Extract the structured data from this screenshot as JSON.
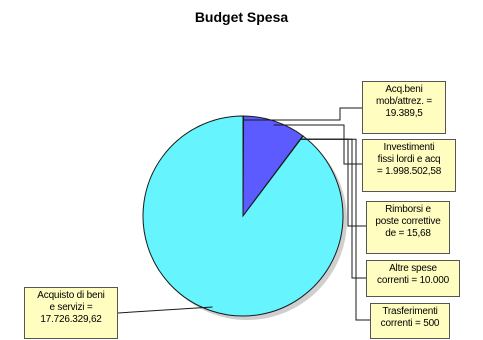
{
  "chart_data": {
    "type": "pie",
    "title": "Budget Spesa",
    "start_angle_deg": 90,
    "direction": "clockwise",
    "slices": [
      {
        "label_lines": [
          "Acq.beni",
          "mob/attrez. =",
          "19.389,5"
        ],
        "value": 19389.5,
        "color": "#5b5bff"
      },
      {
        "label_lines": [
          "Investimenti",
          "fissi lordi e acq",
          "= 1.998.502,58"
        ],
        "value": 1998502.58,
        "color": "#5b5bff"
      },
      {
        "label_lines": [
          "Rimborsi e",
          "poste correttive",
          "de = 15,68"
        ],
        "value": 15.68,
        "color": "#5b5bff"
      },
      {
        "label_lines": [
          "Altre spese",
          "correnti = 10.000"
        ],
        "value": 10000,
        "color": "#5b5bff"
      },
      {
        "label_lines": [
          "Trasferimenti",
          "correnti = 500"
        ],
        "value": 500,
        "color": "#5b5bff"
      },
      {
        "label_lines": [
          "Acquisto di beni",
          "e servizi =",
          "17.726.329,62"
        ],
        "value": 17726329.62,
        "color": "#66f4ff"
      }
    ]
  }
}
